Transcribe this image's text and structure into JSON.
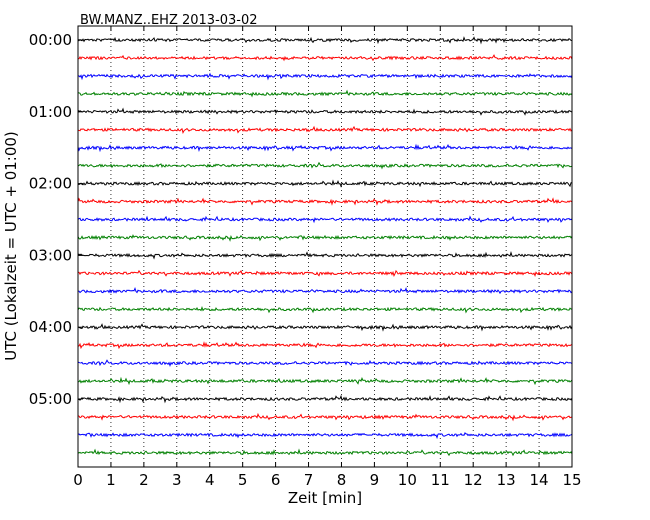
{
  "chart_data": {
    "type": "line",
    "title": "BW.MANZ..EHZ 2013-03-02",
    "xlabel": "Zeit  [min]",
    "ylabel": "UTC (Lokalzeit = UTC + 01:00)",
    "xlim": [
      0,
      15
    ],
    "x_ticks": [
      0,
      1,
      2,
      3,
      4,
      5,
      6,
      7,
      8,
      9,
      10,
      11,
      12,
      13,
      14,
      15
    ],
    "y_tick_labels": [
      "00:00",
      "01:00",
      "02:00",
      "03:00",
      "04:00",
      "05:00"
    ],
    "trace_interval_min": 15,
    "trace_count": 24,
    "trace_colors": [
      "#000000",
      "#ff0000",
      "#0000ff",
      "#008000"
    ],
    "vertical_grid": "dotted",
    "traces": [
      {
        "start": "00:00",
        "color": "#000000"
      },
      {
        "start": "00:15",
        "color": "#ff0000"
      },
      {
        "start": "00:30",
        "color": "#0000ff"
      },
      {
        "start": "00:45",
        "color": "#008000"
      },
      {
        "start": "01:00",
        "color": "#000000"
      },
      {
        "start": "01:15",
        "color": "#ff0000"
      },
      {
        "start": "01:30",
        "color": "#0000ff"
      },
      {
        "start": "01:45",
        "color": "#008000"
      },
      {
        "start": "02:00",
        "color": "#000000"
      },
      {
        "start": "02:15",
        "color": "#ff0000"
      },
      {
        "start": "02:30",
        "color": "#0000ff"
      },
      {
        "start": "02:45",
        "color": "#008000"
      },
      {
        "start": "03:00",
        "color": "#000000"
      },
      {
        "start": "03:15",
        "color": "#ff0000"
      },
      {
        "start": "03:30",
        "color": "#0000ff"
      },
      {
        "start": "03:45",
        "color": "#008000"
      },
      {
        "start": "04:00",
        "color": "#000000"
      },
      {
        "start": "04:15",
        "color": "#ff0000"
      },
      {
        "start": "04:30",
        "color": "#0000ff"
      },
      {
        "start": "04:45",
        "color": "#008000"
      },
      {
        "start": "05:00",
        "color": "#000000"
      },
      {
        "start": "05:15",
        "color": "#ff0000"
      },
      {
        "start": "05:30",
        "color": "#0000ff"
      },
      {
        "start": "05:45",
        "color": "#008000"
      }
    ]
  }
}
